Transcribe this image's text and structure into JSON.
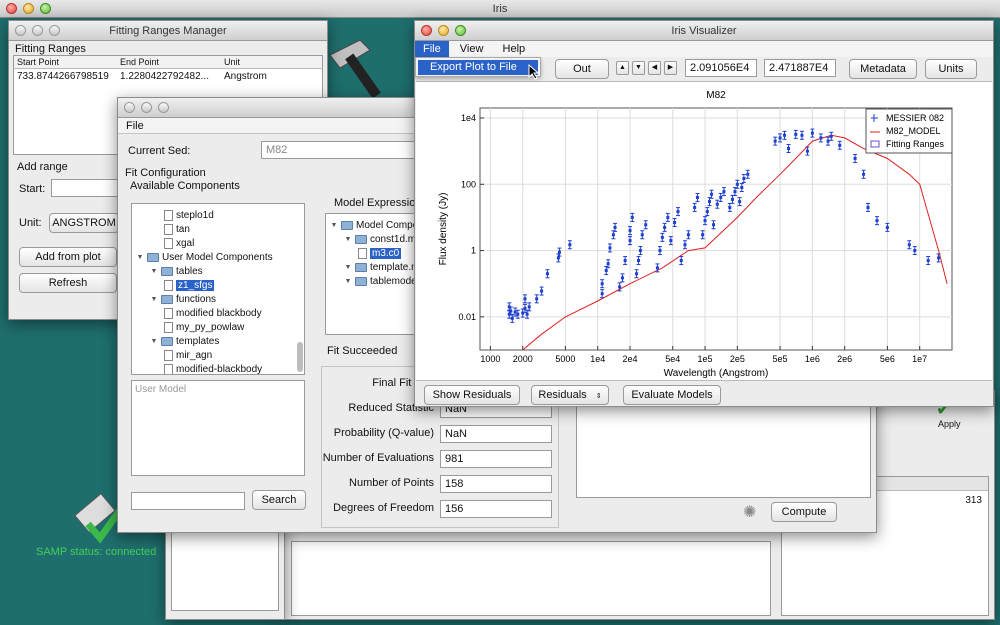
{
  "desktop": {
    "title": "Iris",
    "samp_status": "SAMP status: connected",
    "bg_color": "#1f6e6e"
  },
  "fitting_ranges": {
    "title": "Fitting Ranges Manager",
    "group": "Fitting Ranges",
    "columns": [
      "Start Point",
      "End Point",
      "Unit"
    ],
    "rows": [
      [
        "733.8744266798519",
        "1.2280422792482...",
        "Angstrom"
      ]
    ],
    "add_range": "Add range",
    "start_label": "Start:",
    "unit_label": "Unit:",
    "unit_value": "ANGSTROM",
    "add_from_plot": "Add from plot",
    "refresh": "Refresh"
  },
  "fit_window": {
    "menu_file": "File",
    "current_sed_label": "Current Sed:",
    "current_sed_value": "M82",
    "fit_configuration": "Fit Configuration",
    "available_components": "Available Components",
    "tree": [
      {
        "label": "steplo1d",
        "type": "doc",
        "indent": 2
      },
      {
        "label": "tan",
        "type": "doc",
        "indent": 2
      },
      {
        "label": "xgal",
        "type": "doc",
        "indent": 2
      },
      {
        "label": "User Model Components",
        "type": "folder",
        "indent": 0
      },
      {
        "label": "tables",
        "type": "folder",
        "indent": 1
      },
      {
        "label": "z1_sfgs",
        "type": "doc",
        "indent": 2,
        "selected": true
      },
      {
        "label": "functions",
        "type": "folder",
        "indent": 1
      },
      {
        "label": "modified blackbody",
        "type": "doc",
        "indent": 2
      },
      {
        "label": "my_py_powlaw",
        "type": "doc",
        "indent": 2
      },
      {
        "label": "templates",
        "type": "folder",
        "indent": 1
      },
      {
        "label": "mir_agn",
        "type": "doc",
        "indent": 2
      },
      {
        "label": "modified-blackbody",
        "type": "doc",
        "indent": 2
      }
    ],
    "user_model": "User Model",
    "search_button": "Search",
    "model_expression": "Model Expression",
    "model_tree": [
      {
        "label": "Model Compone",
        "type": "folder",
        "indent": 0
      },
      {
        "label": "const1d.m3",
        "type": "folder",
        "indent": 1
      },
      {
        "label": "m3.c0",
        "type": "doc",
        "indent": 2,
        "selected": true
      },
      {
        "label": "template.m4",
        "type": "folder",
        "indent": 1
      },
      {
        "label": "tablemodel.m",
        "type": "folder",
        "indent": 1
      }
    ],
    "fit_status": "Fit Succeeded",
    "stats": [
      {
        "label": "Final Fit Stat",
        "value": ""
      },
      {
        "label": "Reduced Statistic",
        "value": "NaN"
      },
      {
        "label": "Probability (Q-value)",
        "value": "NaN"
      },
      {
        "label": "Number of Evaluations",
        "value": "981"
      },
      {
        "label": "Number of Points",
        "value": "158"
      },
      {
        "label": "Degrees of Freedom",
        "value": "156"
      }
    ],
    "compute_button": "Compute"
  },
  "right_window": {
    "apply": "Apply",
    "count": "313",
    "col_tail": "nts"
  },
  "visualizer": {
    "title": "Iris Visualizer",
    "menu": [
      "File",
      "View",
      "Help"
    ],
    "dropdown_item": "Export Plot to File",
    "out_button": "Out",
    "nav_arrows": [
      "▲",
      "▼",
      "◀",
      "▶"
    ],
    "x_min": "2.091056E4",
    "x_max": "2.471887E4",
    "metadata_button": "Metadata",
    "units_button": "Units",
    "show_residuals": "Show Residuals",
    "residuals_select": "Residuals",
    "evaluate_models": "Evaluate Models"
  },
  "chart_data": {
    "type": "scatter",
    "title": "M82",
    "xlabel": "Wavelength (Angstrom)",
    "ylabel": "Flux density (Jy)",
    "xscale": "log",
    "yscale": "log",
    "xlim": [
      800,
      20000000
    ],
    "ylim": [
      0.001,
      20000
    ],
    "xticks": [
      {
        "v": 1000,
        "label": "1000"
      },
      {
        "v": 2000,
        "label": "2000"
      },
      {
        "v": 5000,
        "label": "5000"
      },
      {
        "v": 10000,
        "label": "1e4"
      },
      {
        "v": 20000,
        "label": "2e4"
      },
      {
        "v": 50000,
        "label": "5e4"
      },
      {
        "v": 100000,
        "label": "1e5"
      },
      {
        "v": 200000,
        "label": "2e5"
      },
      {
        "v": 500000,
        "label": "5e5"
      },
      {
        "v": 1000000,
        "label": "1e6"
      },
      {
        "v": 2000000,
        "label": "2e6"
      },
      {
        "v": 5000000,
        "label": "5e6"
      },
      {
        "v": 10000000,
        "label": "1e7"
      }
    ],
    "yticks": [
      {
        "v": 0.01,
        "label": "0.01"
      },
      {
        "v": 1,
        "label": "1"
      },
      {
        "v": 100,
        "label": "100"
      },
      {
        "v": 10000,
        "label": "1e4"
      }
    ],
    "grid": true,
    "legend_position": "top-right",
    "legend": [
      "MESSIER 082",
      "M82_MODEL",
      "Fitting Ranges"
    ],
    "series": [
      {
        "name": "MESSIER 082",
        "color": "#1f3fd0",
        "points": [
          [
            1500,
            0.02
          ],
          [
            1500,
            0.012
          ],
          [
            1550,
            0.015
          ],
          [
            1600,
            0.009
          ],
          [
            1700,
            0.014
          ],
          [
            1800,
            0.012
          ],
          [
            2000,
            0.013
          ],
          [
            2100,
            0.018
          ],
          [
            2100,
            0.035
          ],
          [
            2200,
            0.012
          ],
          [
            2300,
            0.02
          ],
          [
            2700,
            0.035
          ],
          [
            3000,
            0.06
          ],
          [
            3400,
            0.2
          ],
          [
            4300,
            0.6
          ],
          [
            4400,
            0.9
          ],
          [
            5500,
            1.5
          ],
          [
            11000,
            0.05
          ],
          [
            11000,
            0.1
          ],
          [
            12000,
            0.25
          ],
          [
            12500,
            0.4
          ],
          [
            13000,
            1.2
          ],
          [
            14000,
            3
          ],
          [
            14500,
            5
          ],
          [
            16000,
            0.08
          ],
          [
            17000,
            0.15
          ],
          [
            18000,
            0.5
          ],
          [
            20000,
            2
          ],
          [
            20000,
            4
          ],
          [
            21000,
            10
          ],
          [
            23000,
            0.2
          ],
          [
            24000,
            0.5
          ],
          [
            25000,
            1
          ],
          [
            26000,
            3
          ],
          [
            28000,
            6
          ],
          [
            36000,
            0.3
          ],
          [
            38000,
            1
          ],
          [
            40000,
            2.5
          ],
          [
            42000,
            5
          ],
          [
            45000,
            10
          ],
          [
            48000,
            2
          ],
          [
            52000,
            7
          ],
          [
            56000,
            15
          ],
          [
            60000,
            0.5
          ],
          [
            65000,
            1.5
          ],
          [
            70000,
            3
          ],
          [
            80000,
            20
          ],
          [
            85000,
            40
          ],
          [
            95000,
            3
          ],
          [
            100000,
            8
          ],
          [
            105000,
            15
          ],
          [
            110000,
            30
          ],
          [
            115000,
            50
          ],
          [
            120000,
            6
          ],
          [
            130000,
            25
          ],
          [
            140000,
            40
          ],
          [
            150000,
            60
          ],
          [
            170000,
            20
          ],
          [
            180000,
            35
          ],
          [
            190000,
            60
          ],
          [
            200000,
            100
          ],
          [
            210000,
            30
          ],
          [
            220000,
            80
          ],
          [
            230000,
            150
          ],
          [
            250000,
            200
          ],
          [
            450000,
            2000
          ],
          [
            500000,
            2500
          ],
          [
            550000,
            3000
          ],
          [
            600000,
            1200
          ],
          [
            700000,
            3200
          ],
          [
            800000,
            3000
          ],
          [
            900000,
            1000
          ],
          [
            1000000,
            3500
          ],
          [
            1200000,
            2500
          ],
          [
            1400000,
            2000
          ],
          [
            1500000,
            2800
          ],
          [
            1800000,
            1500
          ],
          [
            2500000,
            600
          ],
          [
            3000000,
            200
          ],
          [
            3300000,
            20
          ],
          [
            4000000,
            8
          ],
          [
            5000000,
            5
          ],
          [
            8000000,
            1.5
          ],
          [
            9000000,
            1
          ],
          [
            12000000,
            0.5
          ],
          [
            15000000,
            0.6
          ]
        ]
      },
      {
        "name": "M82_MODEL",
        "color": "#e02020",
        "line": [
          [
            2000,
            0.001
          ],
          [
            3000,
            0.003
          ],
          [
            5000,
            0.01
          ],
          [
            10000,
            0.03
          ],
          [
            20000,
            0.1
          ],
          [
            40000,
            0.3
          ],
          [
            70000,
            1
          ],
          [
            100000,
            1.2
          ],
          [
            200000,
            10
          ],
          [
            300000,
            40
          ],
          [
            500000,
            200
          ],
          [
            700000,
            600
          ],
          [
            1000000,
            2000
          ],
          [
            1500000,
            3000
          ],
          [
            2000000,
            2500
          ],
          [
            3000000,
            1200
          ],
          [
            5000000,
            600
          ],
          [
            8000000,
            200
          ],
          [
            10000000,
            100
          ],
          [
            15000000,
            1
          ],
          [
            18000000,
            0.1
          ]
        ]
      }
    ]
  }
}
